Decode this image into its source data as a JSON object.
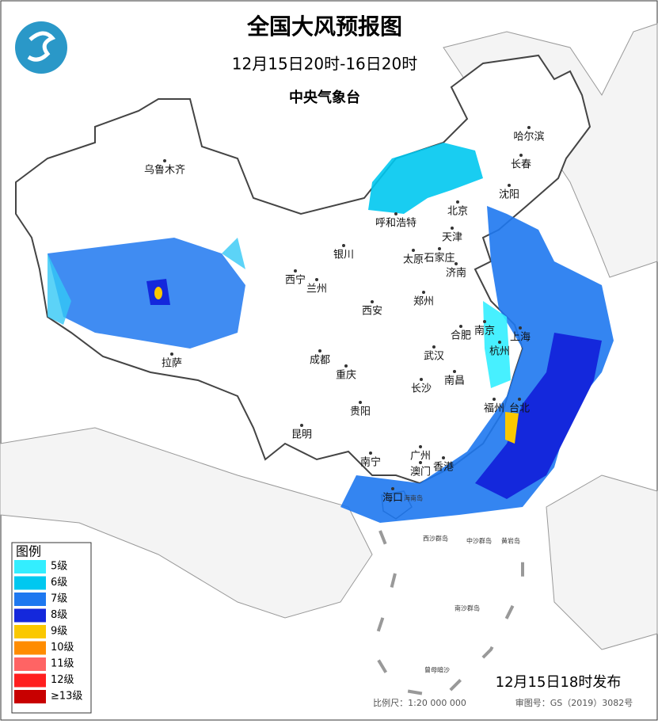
{
  "header": {
    "title": "全国大风预报图",
    "subtitle": "12月15日20时-16日20时",
    "issuer": "中央气象台"
  },
  "legend": {
    "title": "图例",
    "items": [
      {
        "label": "5级",
        "color": "#33eeff"
      },
      {
        "label": "6级",
        "color": "#00c8f0"
      },
      {
        "label": "7级",
        "color": "#1e78f0"
      },
      {
        "label": "8级",
        "color": "#1428dc"
      },
      {
        "label": "9级",
        "color": "#fac800"
      },
      {
        "label": "10级",
        "color": "#ff8c00"
      },
      {
        "label": "11级",
        "color": "#ff6464"
      },
      {
        "label": "12级",
        "color": "#ff1e1e"
      },
      {
        "label": "≥13级",
        "color": "#c80000"
      }
    ]
  },
  "cities": [
    "乌鲁木齐",
    "哈尔滨",
    "长春",
    "沈阳",
    "北京",
    "呼和浩特",
    "天津",
    "太原",
    "石家庄",
    "济南",
    "银川",
    "西宁",
    "兰州",
    "郑州",
    "西安",
    "合肥",
    "南京",
    "上海",
    "杭州",
    "武汉",
    "成都",
    "重庆",
    "长沙",
    "南昌",
    "拉萨",
    "贵阳",
    "福州",
    "台北",
    "昆明",
    "南宁",
    "广州",
    "香港",
    "澳门",
    "海口"
  ],
  "islands": [
    "海南岛",
    "西沙群岛",
    "中沙群岛",
    "黄岩岛",
    "南沙群岛",
    "曾母暗沙"
  ],
  "footer": {
    "issued": "12月15日18时发布",
    "scale": "比例尺：1:20 000 000",
    "review": "审图号：GS（2019）3082号"
  }
}
